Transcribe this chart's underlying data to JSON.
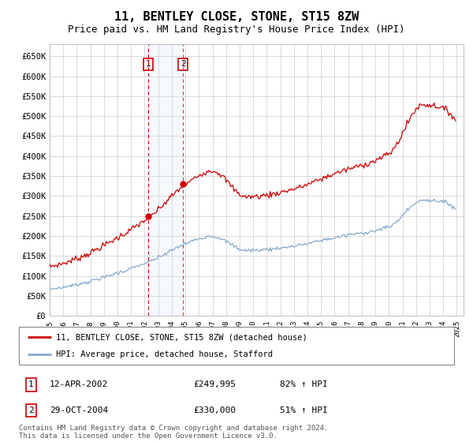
{
  "title": "11, BENTLEY CLOSE, STONE, ST15 8ZW",
  "subtitle": "Price paid vs. HM Land Registry's House Price Index (HPI)",
  "title_fontsize": 11,
  "subtitle_fontsize": 9,
  "ylim": [
    0,
    680000
  ],
  "xlim_start": 1995.0,
  "xlim_end": 2025.5,
  "sale1_date": 2002.278,
  "sale1_price": 249995,
  "sale2_date": 2004.826,
  "sale2_price": 330000,
  "legend1": "11, BENTLEY CLOSE, STONE, ST15 8ZW (detached house)",
  "legend2": "HPI: Average price, detached house, Stafford",
  "annotation1": "12-APR-2002",
  "annotation1_price": "£249,995",
  "annotation1_hpi": "82% ↑ HPI",
  "annotation2": "29-OCT-2004",
  "annotation2_price": "£330,000",
  "annotation2_hpi": "51% ↑ HPI",
  "footer": "Contains HM Land Registry data © Crown copyright and database right 2024.\nThis data is licensed under the Open Government Licence v3.0.",
  "line_color_red": "#cc0000",
  "line_color_blue": "#88aacc",
  "marker_color_red": "#cc0000",
  "shade_color": "#ccddf5",
  "grid_color": "#cccccc",
  "background_color": "#ffffff"
}
